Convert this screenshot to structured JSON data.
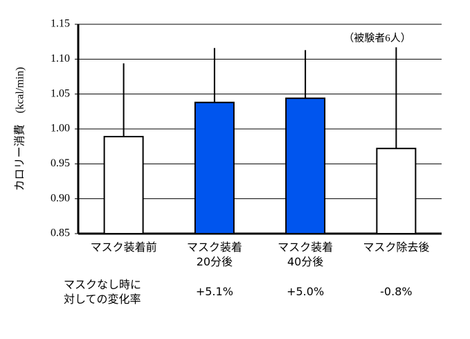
{
  "chart_data": {
    "type": "bar",
    "categories": [
      "マスク装着前",
      "マスク装着\n20分後",
      "マスク装着\n40分後",
      "マスク除去後"
    ],
    "values": [
      0.989,
      1.038,
      1.044,
      0.972
    ],
    "errors": [
      0.105,
      0.078,
      0.069,
      0.145
    ],
    "colors": [
      "#ffffff",
      "#0055ee",
      "#0055ee",
      "#ffffff"
    ],
    "ylabel": "カロリー消費　(kcal/min)",
    "annotation": "（被験者6人）",
    "change_label": "マスクなし時に\n対しての変化率",
    "change_rates": [
      null,
      "+5.1%",
      "+5.0%",
      "-0.8%"
    ],
    "ylim": [
      0.85,
      1.15
    ],
    "yticks": [
      0.85,
      {
        "value": 0.9,
        "label": "0.90"
      },
      0.95,
      {
        "value": 1,
        "label": "1.00"
      },
      1.05,
      {
        "value": 1.1,
        "label": "1.10"
      },
      1.15
    ],
    "grid": true
  }
}
